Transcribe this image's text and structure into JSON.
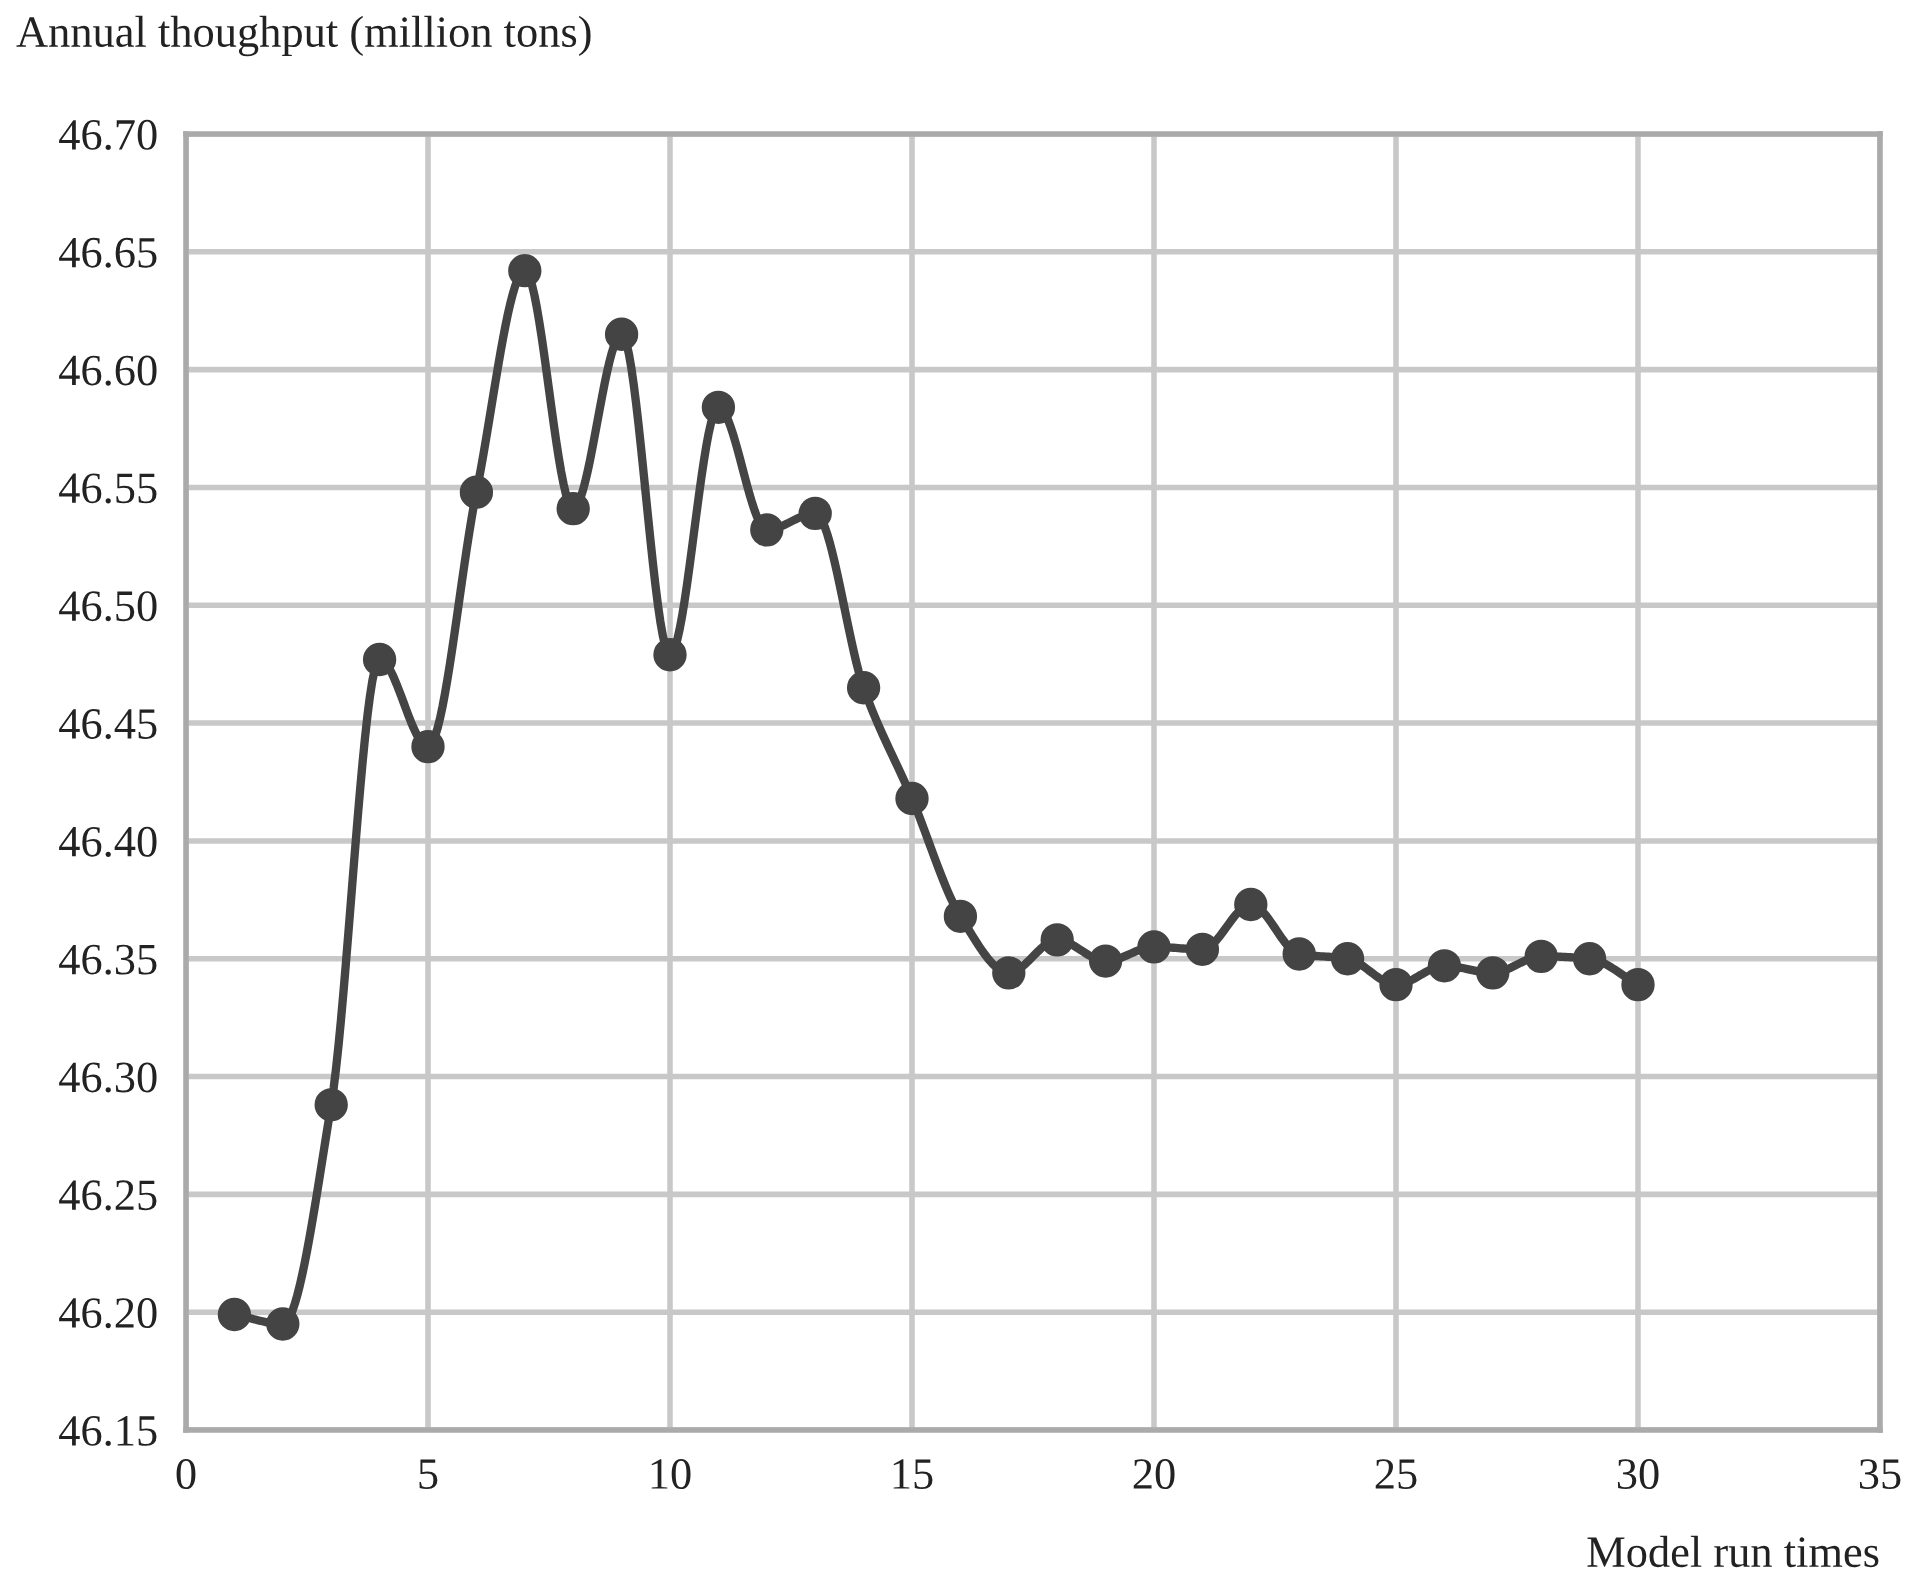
{
  "chart_data": {
    "type": "line",
    "xlabel": "Model run times",
    "ylabel": "Annual thoughput (million tons)",
    "x": [
      1,
      2,
      3,
      4,
      5,
      6,
      7,
      8,
      9,
      10,
      11,
      12,
      13,
      14,
      15,
      16,
      17,
      18,
      19,
      20,
      21,
      22,
      23,
      24,
      25,
      26,
      27,
      28,
      29,
      30
    ],
    "series": [
      {
        "color": "#444444",
        "values": [
          46.199,
          46.195,
          46.288,
          46.477,
          46.44,
          46.548,
          46.642,
          46.541,
          46.615,
          46.479,
          46.584,
          46.532,
          46.539,
          46.465,
          46.418,
          46.368,
          46.344,
          46.358,
          46.349,
          46.355,
          46.354,
          46.373,
          46.352,
          46.35,
          46.339,
          46.347,
          46.344,
          46.351,
          46.35,
          46.339
        ]
      }
    ],
    "xlim": [
      0,
      35
    ],
    "xticks": [
      0,
      5,
      10,
      15,
      20,
      25,
      30,
      35
    ],
    "ylim": [
      46.15,
      46.7
    ],
    "yticks": [
      {
        "value": 46.15,
        "label": "46.15"
      },
      {
        "value": 46.2,
        "label": "46.20"
      },
      {
        "value": 46.25,
        "label": "46.25"
      },
      {
        "value": 46.3,
        "label": "46.30"
      },
      {
        "value": 46.35,
        "label": "46.35"
      },
      {
        "value": 46.4,
        "label": "46.40"
      },
      {
        "value": 46.45,
        "label": "46.45"
      },
      {
        "value": 46.5,
        "label": "46.50"
      },
      {
        "value": 46.55,
        "label": "46.55"
      },
      {
        "value": 46.6,
        "label": "46.60"
      },
      {
        "value": 46.65,
        "label": "46.65"
      },
      {
        "value": 46.7,
        "label": "46.70"
      }
    ],
    "grid": true,
    "marker": "circle",
    "line_style": "solid",
    "legend": false
  }
}
